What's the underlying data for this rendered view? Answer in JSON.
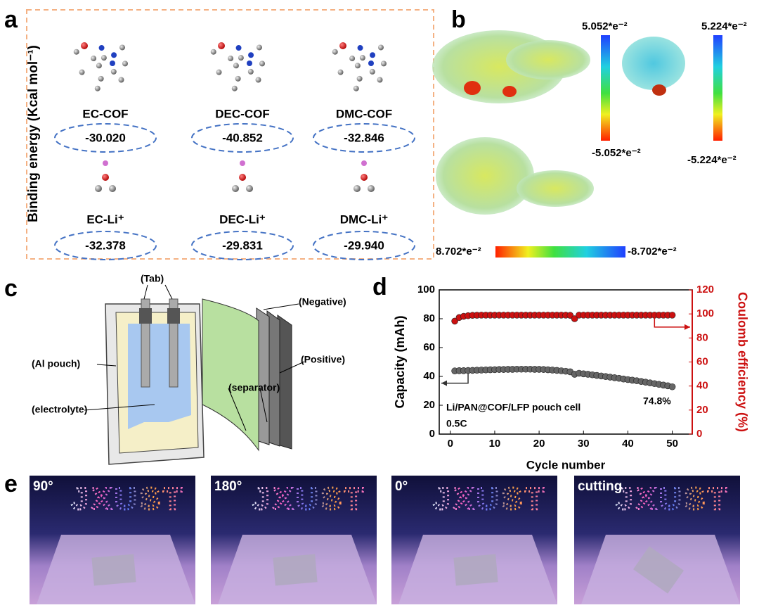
{
  "panel_labels": [
    "a",
    "b",
    "c",
    "d",
    "e"
  ],
  "panel_a": {
    "y_label": "Binding energy (Kcal mol⁻¹)",
    "cof": [
      {
        "name": "EC-COF",
        "energy": "-30.020"
      },
      {
        "name": "DEC-COF",
        "energy": "-40.852"
      },
      {
        "name": "DMC-COF",
        "energy": "-32.846"
      }
    ],
    "li": [
      {
        "name": "EC-Li⁺",
        "energy": "-32.378"
      },
      {
        "name": "DEC-Li⁺",
        "energy": "-29.831"
      },
      {
        "name": "DMC-Li⁺",
        "energy": "-29.940"
      }
    ]
  },
  "panel_b": {
    "scale_1": {
      "top": "5.052*e⁻²",
      "bottom": "-5.052*e⁻²"
    },
    "scale_2": {
      "top": "5.224*e⁻²",
      "bottom": "-5.224*e⁻²"
    },
    "scale_3": {
      "left": "8.702*e⁻²",
      "right": "-8.702*e⁻²"
    }
  },
  "panel_c": {
    "tab": "(Tab)",
    "negative": "(Negative)",
    "al_pouch": "(Al pouch)",
    "positive": "(Positive)",
    "separator": "(separator)",
    "electrolyte": "(electrolyte)"
  },
  "chart_data": {
    "type": "scatter",
    "x_label": "Cycle number",
    "y_label": "Capacity (mAh)",
    "y2_label": "Coulomb efficiency (%)",
    "annotations": [
      "Li/PAN@COF/LFP pouch cell",
      "0.5C",
      "74.8%"
    ],
    "x": [
      1,
      2,
      3,
      4,
      5,
      6,
      7,
      8,
      9,
      10,
      11,
      12,
      13,
      14,
      15,
      16,
      17,
      18,
      19,
      20,
      21,
      22,
      23,
      24,
      25,
      26,
      27,
      28,
      29,
      30,
      31,
      32,
      33,
      34,
      35,
      36,
      37,
      38,
      39,
      40,
      41,
      42,
      43,
      44,
      45,
      46,
      47,
      48,
      49,
      50
    ],
    "series": [
      {
        "name": "Capacity",
        "color": "#666666",
        "values": [
          43.8,
          44,
          44,
          44.1,
          44.2,
          44.3,
          44.4,
          44.5,
          44.6,
          44.7,
          44.8,
          44.8,
          44.9,
          44.9,
          45,
          45,
          45,
          45,
          44.9,
          44.9,
          44.8,
          44.6,
          44.4,
          44.2,
          43.9,
          43.6,
          43.2,
          41.5,
          42.2,
          41.8,
          41.5,
          41.1,
          40.7,
          40.3,
          39.9,
          39.5,
          39.1,
          38.7,
          38.2,
          37.8,
          37.4,
          37,
          36.5,
          36,
          35.5,
          35,
          34.5,
          34,
          33.5,
          32.8
        ]
      },
      {
        "name": "Coulomb efficiency",
        "color": "#cc1111",
        "axis": "y2",
        "values": [
          94,
          97,
          98,
          98.5,
          98.8,
          98.9,
          99,
          99,
          99,
          99,
          99,
          99,
          99,
          99,
          99,
          99,
          99,
          99,
          99,
          99,
          99,
          99,
          99,
          99,
          99,
          99,
          98.8,
          96,
          99,
          99,
          99,
          99,
          99,
          99,
          99,
          99,
          99,
          99,
          99,
          99,
          99,
          99,
          99,
          99,
          99,
          99,
          99,
          99,
          99,
          99
        ]
      }
    ],
    "xlim": [
      -2.5,
      54.5
    ],
    "xticks": [
      0,
      10,
      20,
      30,
      40,
      50
    ],
    "ylim": [
      0,
      100
    ],
    "yticks": [
      0,
      20,
      40,
      60,
      80,
      100
    ],
    "y2lim": [
      0,
      120
    ],
    "y2ticks": [
      0,
      20,
      40,
      60,
      80,
      100,
      120
    ],
    "y2_color": "#cc1111"
  },
  "panel_e": {
    "captions": [
      "90°",
      "180°",
      "0°",
      "cutting"
    ],
    "sign": "JXUST"
  }
}
